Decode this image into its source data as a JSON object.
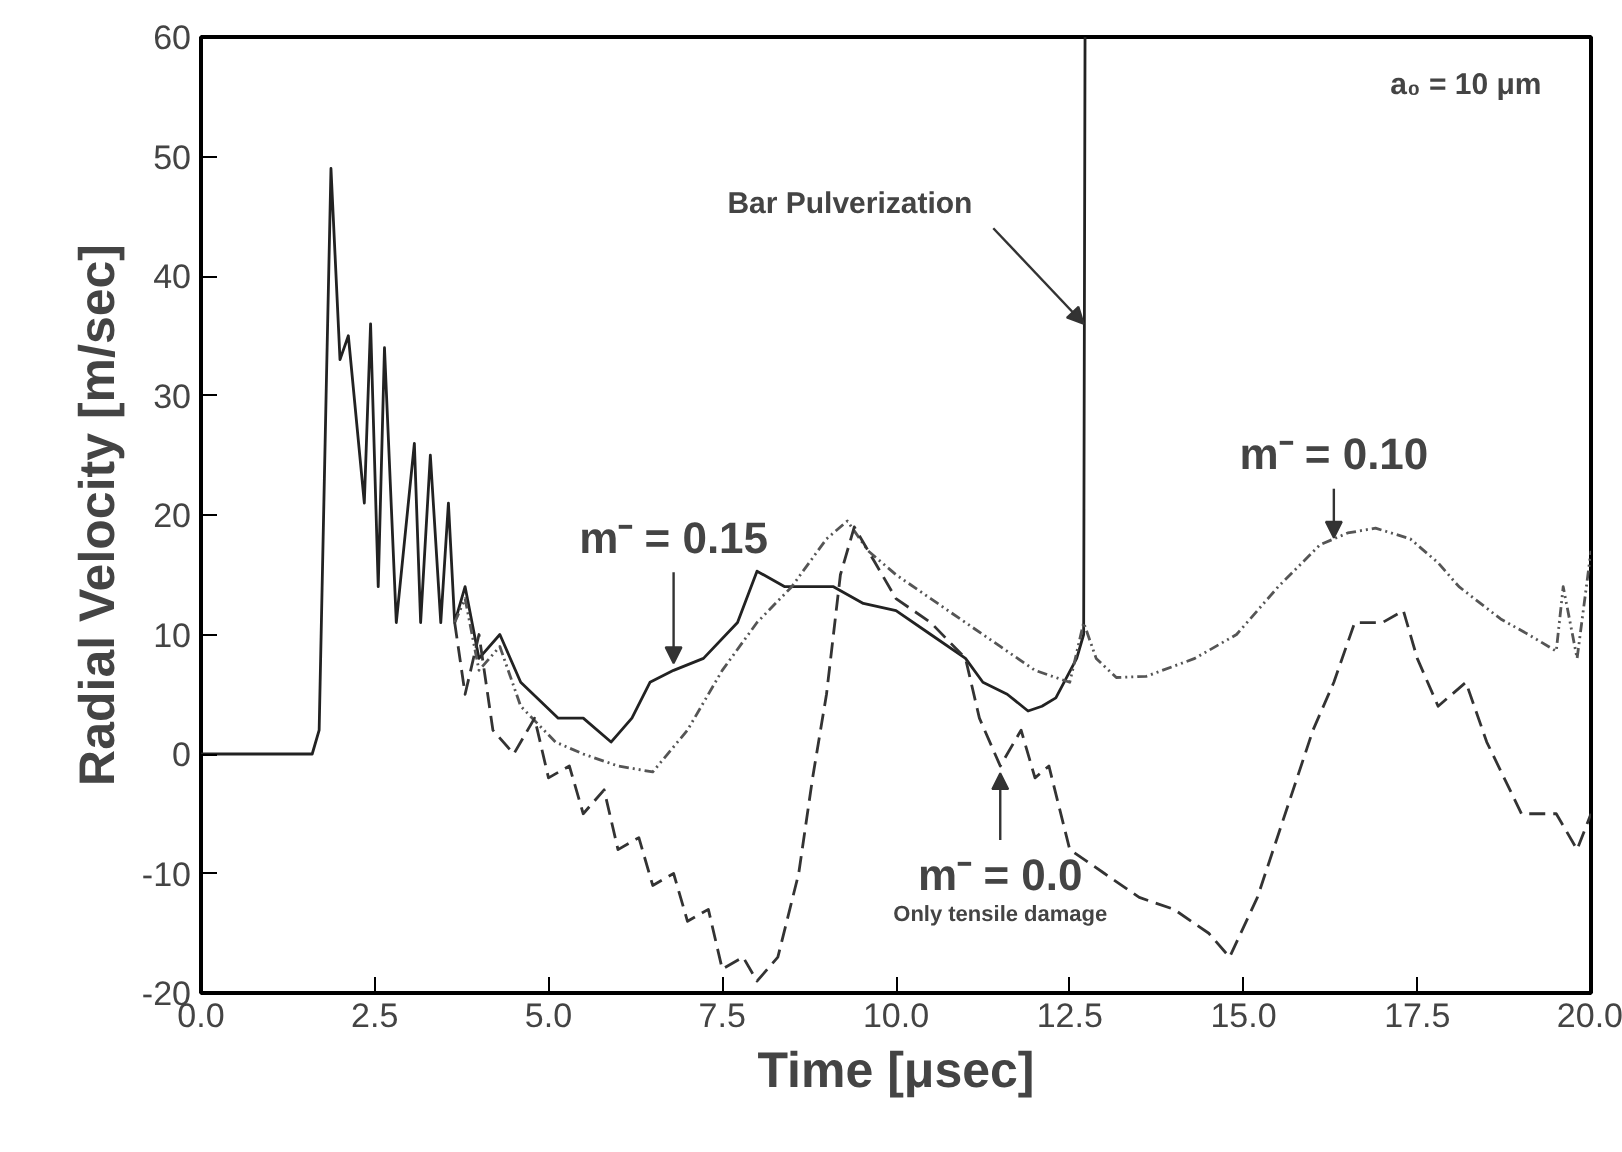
{
  "chart_data": {
    "type": "line",
    "xlabel": "Time [μsec]",
    "ylabel": "Radial Velocity [m/sec]",
    "xlim": [
      0,
      20
    ],
    "ylim": [
      -20,
      60
    ],
    "xticks": [
      {
        "value": 0,
        "label": "0.0"
      },
      {
        "value": 2.5,
        "label": "2.5"
      },
      {
        "value": 5,
        "label": "5.0"
      },
      {
        "value": 7.5,
        "label": "7.5"
      },
      {
        "value": 10,
        "label": "10.0"
      },
      {
        "value": 12.5,
        "label": "12.5"
      },
      {
        "value": 15,
        "label": "15.0"
      },
      {
        "value": 17.5,
        "label": "17.5"
      },
      {
        "value": 20,
        "label": "20.0"
      }
    ],
    "yticks": [
      -20,
      -10,
      0,
      10,
      20,
      30,
      40,
      50,
      60
    ],
    "grid": false,
    "marker": "none",
    "series": [
      {
        "color": "#222222",
        "line_style": "solid",
        "x": [
          0,
          1.6,
          1.7,
          1.8,
          1.87,
          2.0,
          2.12,
          2.35,
          2.44,
          2.55,
          2.64,
          2.81,
          3.07,
          3.16,
          3.3,
          3.45,
          3.56,
          3.65,
          3.8,
          4.0,
          4.3,
          4.6,
          5.14,
          5.5,
          5.9,
          6.2,
          6.46,
          6.8,
          7.23,
          7.72,
          8.0,
          8.4,
          8.87,
          9.1,
          9.53,
          10.0,
          10.5,
          11.0,
          11.25,
          11.6,
          11.9,
          12.1,
          12.3,
          12.6,
          12.7,
          12.72
        ],
        "values": [
          0,
          0,
          2,
          30,
          49,
          33,
          35,
          21,
          36,
          14,
          34,
          11,
          26,
          11,
          25,
          11,
          21,
          11,
          14,
          8,
          10,
          6,
          3,
          3,
          1,
          3,
          6,
          7,
          8,
          11,
          15.3,
          14,
          14,
          14,
          12.6,
          12,
          10,
          8,
          6,
          5,
          3.6,
          4,
          4.7,
          8,
          10,
          60
        ]
      },
      {
        "color": "#555555",
        "line_style": "dotted",
        "x": [
          3.65,
          3.8,
          4.0,
          4.3,
          4.6,
          5.1,
          5.5,
          6.0,
          6.5,
          7.0,
          7.5,
          8.0,
          8.5,
          9.0,
          9.3,
          9.6,
          10.0,
          10.5,
          11.0,
          11.5,
          12.0,
          12.5,
          12.7,
          12.88,
          13.17,
          13.6,
          14.3,
          14.9,
          15.5,
          16.1,
          16.5,
          16.9,
          17.4,
          17.8,
          18.1,
          18.7,
          19.1,
          19.5,
          19.6,
          19.8,
          20.0
        ],
        "values": [
          11,
          13,
          7,
          9,
          4,
          1,
          0,
          -1,
          -1.5,
          2,
          7,
          11,
          14,
          18,
          19.5,
          17,
          15,
          13,
          11,
          9,
          7,
          6,
          11,
          8,
          6.4,
          6.5,
          8,
          10,
          14,
          17.5,
          18.5,
          18.9,
          18,
          16,
          14,
          11.3,
          10,
          8.6,
          14,
          8,
          17
        ]
      },
      {
        "color": "#333333",
        "line_style": "dashed",
        "x": [
          3.65,
          3.8,
          4.0,
          4.2,
          4.5,
          4.8,
          5.0,
          5.3,
          5.5,
          5.8,
          6.0,
          6.3,
          6.5,
          6.8,
          7.0,
          7.3,
          7.5,
          7.8,
          8.0,
          8.3,
          8.6,
          8.8,
          9.0,
          9.2,
          9.4,
          9.7,
          10.0,
          10.5,
          11.0,
          11.2,
          11.5,
          11.8,
          12.0,
          12.2,
          12.5,
          13.0,
          13.5,
          14.0,
          14.5,
          14.8,
          15.2,
          15.6,
          16.0,
          16.3,
          16.6,
          17.0,
          17.3,
          17.5,
          17.8,
          18.2,
          18.5,
          19.0,
          19.5,
          19.8,
          20.0
        ],
        "values": [
          11,
          5,
          10,
          2,
          0,
          3,
          -2,
          -1,
          -5,
          -3,
          -8,
          -7,
          -11,
          -10,
          -14,
          -13,
          -18,
          -17,
          -19,
          -17,
          -10,
          -2,
          5,
          15,
          19,
          16,
          13,
          11,
          8,
          3,
          -1,
          2,
          -2,
          -1,
          -8,
          -10,
          -12,
          -13,
          -15,
          -17,
          -12,
          -5,
          2,
          6,
          11,
          11,
          12,
          8,
          4,
          6,
          1,
          -5,
          -5,
          -8,
          -5
        ]
      }
    ],
    "annotations": [
      {
        "text": "Bar Pulverization",
        "x": 12.7,
        "y": 36
      },
      {
        "text": "m⁻ = 0.15",
        "x": 6.8,
        "y": 7
      },
      {
        "text": "m⁻ = 0.10",
        "x": 16.3,
        "y": 17.5
      },
      {
        "text": "m⁻ = 0.0",
        "x": 11.5,
        "y": -1
      },
      "Only tensile damage",
      "a₀ = 10 μm"
    ]
  }
}
